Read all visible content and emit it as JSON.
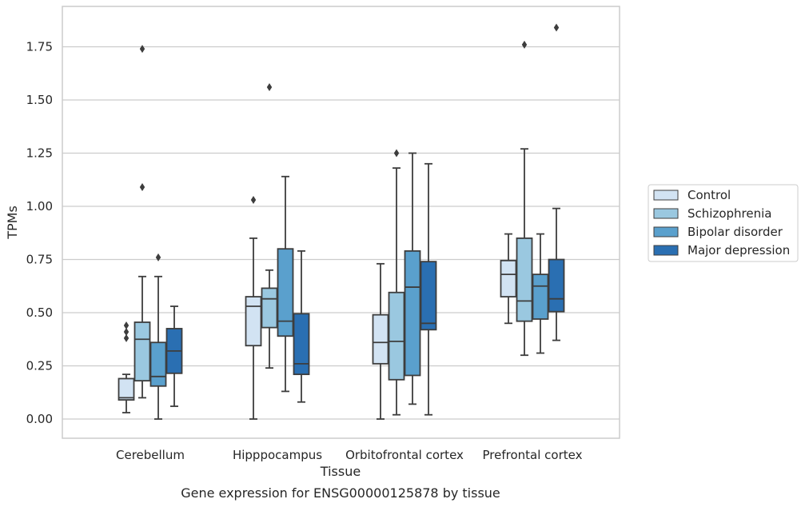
{
  "chart_data": {
    "type": "box",
    "title": "Gene expression for ENSG00000125878 by tissue",
    "xlabel": "Tissue",
    "ylabel": "TPMs",
    "ylim": [
      -0.09,
      1.94
    ],
    "yticks": [
      "0.00",
      "0.25",
      "0.50",
      "0.75",
      "1.00",
      "1.25",
      "1.50",
      "1.75"
    ],
    "grid": true,
    "legend_position": "right",
    "categories": [
      "Cerebellum",
      "Hipppocampus",
      "Orbitofrontal cortex",
      "Prefrontal cortex"
    ],
    "series": [
      {
        "name": "Control",
        "color": "#d2e3f3",
        "boxes": [
          {
            "whislo": 0.03,
            "q1": 0.09,
            "med": 0.1,
            "q3": 0.19,
            "whishi": 0.21,
            "fliers": [
              0.38,
              0.41,
              0.44
            ]
          },
          {
            "whislo": 0.0,
            "q1": 0.345,
            "med": 0.53,
            "q3": 0.575,
            "whishi": 0.85,
            "fliers": [
              1.03
            ]
          },
          {
            "whislo": 0.0,
            "q1": 0.26,
            "med": 0.36,
            "q3": 0.49,
            "whishi": 0.73,
            "fliers": []
          },
          {
            "whislo": 0.45,
            "q1": 0.575,
            "med": 0.68,
            "q3": 0.745,
            "whishi": 0.87,
            "fliers": []
          }
        ]
      },
      {
        "name": "Schizophrenia",
        "color": "#9ac8e0",
        "boxes": [
          {
            "whislo": 0.1,
            "q1": 0.18,
            "med": 0.375,
            "q3": 0.455,
            "whishi": 0.67,
            "fliers": [
              1.09,
              1.74
            ]
          },
          {
            "whislo": 0.24,
            "q1": 0.43,
            "med": 0.565,
            "q3": 0.615,
            "whishi": 0.7,
            "fliers": [
              1.56
            ]
          },
          {
            "whislo": 0.02,
            "q1": 0.185,
            "med": 0.365,
            "q3": 0.595,
            "whishi": 1.18,
            "fliers": [
              1.25
            ]
          },
          {
            "whislo": 0.3,
            "q1": 0.46,
            "med": 0.555,
            "q3": 0.85,
            "whishi": 1.27,
            "fliers": [
              1.76
            ]
          }
        ]
      },
      {
        "name": "Bipolar disorder",
        "color": "#5aa0cd",
        "boxes": [
          {
            "whislo": 0.0,
            "q1": 0.155,
            "med": 0.2,
            "q3": 0.36,
            "whishi": 0.67,
            "fliers": [
              0.76
            ]
          },
          {
            "whislo": 0.13,
            "q1": 0.39,
            "med": 0.46,
            "q3": 0.8,
            "whishi": 1.14,
            "fliers": []
          },
          {
            "whislo": 0.07,
            "q1": 0.205,
            "med": 0.62,
            "q3": 0.79,
            "whishi": 1.25,
            "fliers": []
          },
          {
            "whislo": 0.31,
            "q1": 0.47,
            "med": 0.625,
            "q3": 0.68,
            "whishi": 0.87,
            "fliers": []
          }
        ]
      },
      {
        "name": "Major depression",
        "color": "#2a6fb2",
        "boxes": [
          {
            "whislo": 0.06,
            "q1": 0.215,
            "med": 0.32,
            "q3": 0.425,
            "whishi": 0.53,
            "fliers": []
          },
          {
            "whislo": 0.08,
            "q1": 0.21,
            "med": 0.26,
            "q3": 0.495,
            "whishi": 0.79,
            "fliers": []
          },
          {
            "whislo": 0.02,
            "q1": 0.42,
            "med": 0.45,
            "q3": 0.74,
            "whishi": 1.2,
            "fliers": []
          },
          {
            "whislo": 0.37,
            "q1": 0.505,
            "med": 0.565,
            "q3": 0.75,
            "whishi": 0.99,
            "fliers": [
              1.84
            ]
          }
        ]
      }
    ]
  }
}
